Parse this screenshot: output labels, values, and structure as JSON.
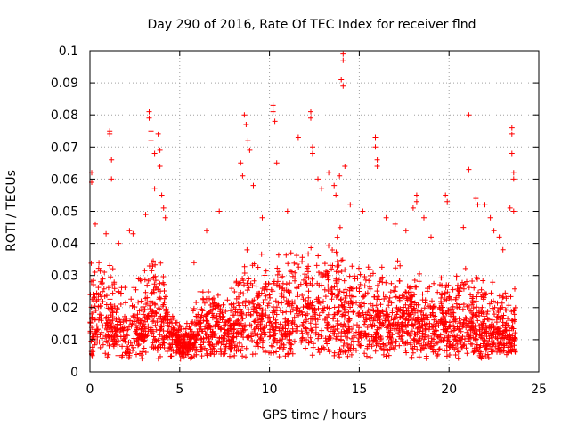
{
  "chart_data": {
    "type": "scatter",
    "title": "Day 290 of 2016, Rate Of TEC Index for receiver flnd",
    "xlabel": "GPS time / hours",
    "ylabel": "ROTI / TECUs",
    "xlim": [
      0,
      25
    ],
    "ylim": [
      0,
      0.1
    ],
    "x_ticks": [
      0,
      5,
      10,
      15,
      20,
      25
    ],
    "x_tick_labels": [
      "0",
      "5",
      "10",
      "15",
      "20",
      "25"
    ],
    "y_ticks": [
      0,
      0.01,
      0.02,
      0.03,
      0.04,
      0.05,
      0.06,
      0.07,
      0.08,
      0.09,
      0.1
    ],
    "y_tick_labels": [
      "0",
      "0.01",
      "0.02",
      "0.03",
      "0.04",
      "0.05",
      "0.06",
      "0.07",
      "0.08",
      "0.09",
      "0.1"
    ],
    "grid": true,
    "marker": "+",
    "series_color": "#ff0000",
    "x_data_range": [
      0,
      23.7
    ],
    "envelope": [
      {
        "t": 0.0,
        "base": 0.018,
        "spread": 0.016
      },
      {
        "t": 1.0,
        "base": 0.015,
        "spread": 0.02
      },
      {
        "t": 2.0,
        "base": 0.013,
        "spread": 0.014
      },
      {
        "t": 3.0,
        "base": 0.016,
        "spread": 0.018
      },
      {
        "t": 3.8,
        "base": 0.018,
        "spread": 0.022
      },
      {
        "t": 4.5,
        "base": 0.012,
        "spread": 0.01
      },
      {
        "t": 5.2,
        "base": 0.01,
        "spread": 0.004
      },
      {
        "t": 6.0,
        "base": 0.013,
        "spread": 0.012
      },
      {
        "t": 7.0,
        "base": 0.014,
        "spread": 0.015
      },
      {
        "t": 8.0,
        "base": 0.014,
        "spread": 0.012
      },
      {
        "t": 8.8,
        "base": 0.02,
        "spread": 0.025
      },
      {
        "t": 10.0,
        "base": 0.018,
        "spread": 0.02
      },
      {
        "t": 11.5,
        "base": 0.018,
        "spread": 0.02
      },
      {
        "t": 12.5,
        "base": 0.02,
        "spread": 0.022
      },
      {
        "t": 13.8,
        "base": 0.022,
        "spread": 0.028
      },
      {
        "t": 15.0,
        "base": 0.017,
        "spread": 0.018
      },
      {
        "t": 16.5,
        "base": 0.017,
        "spread": 0.018
      },
      {
        "t": 18.0,
        "base": 0.016,
        "spread": 0.018
      },
      {
        "t": 19.5,
        "base": 0.015,
        "spread": 0.016
      },
      {
        "t": 20.5,
        "base": 0.015,
        "spread": 0.018
      },
      {
        "t": 22.0,
        "base": 0.013,
        "spread": 0.016
      },
      {
        "t": 23.7,
        "base": 0.012,
        "spread": 0.014
      }
    ],
    "outliers": [
      [
        0.1,
        0.062
      ],
      [
        0.1,
        0.059
      ],
      [
        0.3,
        0.046
      ],
      [
        0.5,
        0.034
      ],
      [
        0.9,
        0.043
      ],
      [
        1.1,
        0.075
      ],
      [
        1.1,
        0.074
      ],
      [
        1.2,
        0.066
      ],
      [
        1.2,
        0.06
      ],
      [
        1.6,
        0.04
      ],
      [
        2.2,
        0.044
      ],
      [
        2.4,
        0.043
      ],
      [
        3.3,
        0.081
      ],
      [
        3.3,
        0.079
      ],
      [
        3.4,
        0.075
      ],
      [
        3.4,
        0.072
      ],
      [
        3.6,
        0.068
      ],
      [
        3.8,
        0.074
      ],
      [
        3.9,
        0.069
      ],
      [
        3.9,
        0.064
      ],
      [
        4.0,
        0.055
      ],
      [
        4.1,
        0.051
      ],
      [
        3.6,
        0.057
      ],
      [
        3.1,
        0.049
      ],
      [
        4.2,
        0.048
      ],
      [
        8.4,
        0.065
      ],
      [
        8.6,
        0.08
      ],
      [
        8.7,
        0.077
      ],
      [
        8.8,
        0.072
      ],
      [
        8.9,
        0.069
      ],
      [
        8.5,
        0.061
      ],
      [
        9.1,
        0.058
      ],
      [
        10.2,
        0.083
      ],
      [
        10.2,
        0.081
      ],
      [
        10.3,
        0.078
      ],
      [
        10.4,
        0.065
      ],
      [
        11.6,
        0.073
      ],
      [
        12.3,
        0.081
      ],
      [
        12.3,
        0.079
      ],
      [
        12.4,
        0.07
      ],
      [
        12.4,
        0.068
      ],
      [
        12.7,
        0.06
      ],
      [
        12.9,
        0.057
      ],
      [
        13.3,
        0.062
      ],
      [
        13.6,
        0.058
      ],
      [
        13.7,
        0.055
      ],
      [
        14.1,
        0.099
      ],
      [
        14.1,
        0.097
      ],
      [
        14.0,
        0.091
      ],
      [
        14.1,
        0.089
      ],
      [
        14.2,
        0.064
      ],
      [
        13.9,
        0.061
      ],
      [
        15.9,
        0.073
      ],
      [
        15.9,
        0.07
      ],
      [
        16.0,
        0.066
      ],
      [
        16.0,
        0.064
      ],
      [
        18.2,
        0.055
      ],
      [
        18.2,
        0.053
      ],
      [
        18.0,
        0.051
      ],
      [
        19.8,
        0.055
      ],
      [
        19.9,
        0.053
      ],
      [
        21.1,
        0.08
      ],
      [
        21.1,
        0.063
      ],
      [
        21.5,
        0.054
      ],
      [
        21.6,
        0.052
      ],
      [
        22.0,
        0.052
      ],
      [
        22.3,
        0.048
      ],
      [
        22.5,
        0.044
      ],
      [
        23.5,
        0.076
      ],
      [
        23.5,
        0.074
      ],
      [
        23.5,
        0.068
      ],
      [
        23.6,
        0.062
      ],
      [
        23.6,
        0.06
      ],
      [
        23.4,
        0.051
      ],
      [
        23.6,
        0.05
      ],
      [
        17.0,
        0.046
      ],
      [
        17.6,
        0.044
      ],
      [
        16.5,
        0.048
      ],
      [
        15.2,
        0.05
      ],
      [
        14.5,
        0.052
      ],
      [
        11.0,
        0.05
      ],
      [
        9.6,
        0.048
      ],
      [
        7.2,
        0.05
      ],
      [
        6.5,
        0.044
      ],
      [
        5.8,
        0.034
      ],
      [
        20.8,
        0.045
      ],
      [
        19.0,
        0.042
      ],
      [
        18.6,
        0.048
      ],
      [
        22.8,
        0.042
      ],
      [
        23.0,
        0.038
      ]
    ]
  }
}
